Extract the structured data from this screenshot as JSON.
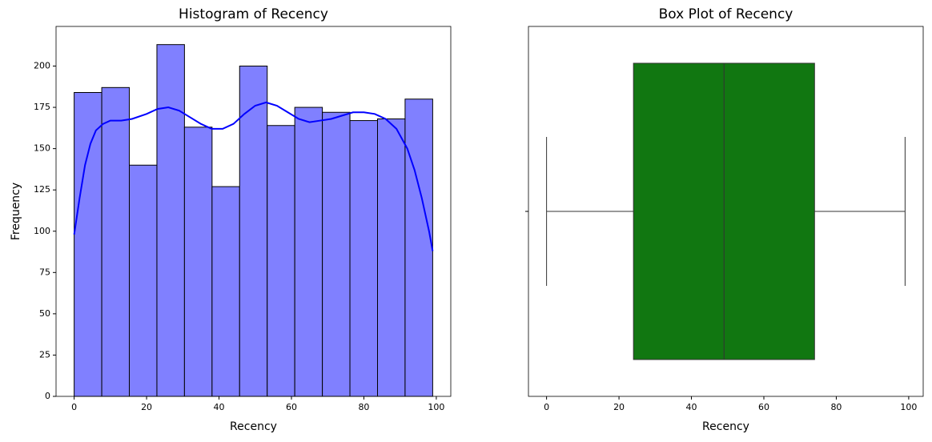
{
  "chart_data": [
    {
      "type": "histogram",
      "title": "Histogram of Recency",
      "xlabel": "Recency",
      "ylabel": "Frequency",
      "bins": [
        0,
        7.62,
        15.23,
        22.85,
        30.46,
        38.08,
        45.69,
        53.31,
        60.92,
        68.54,
        76.15,
        83.77,
        91.38,
        99
      ],
      "values": [
        184,
        187,
        140,
        213,
        163,
        127,
        200,
        164,
        175,
        172,
        167,
        168,
        180
      ],
      "color": "#8080ff",
      "edgecolor": "#000000",
      "kde": {
        "color": "#0000ff",
        "x": [
          0,
          1.5,
          3,
          4.5,
          6,
          8,
          10,
          13,
          16,
          20,
          23,
          26,
          29,
          32,
          35,
          38,
          41,
          44,
          47,
          50,
          53,
          56,
          59,
          62,
          65,
          68,
          71,
          74,
          77,
          80,
          83,
          86,
          89,
          92,
          94,
          96,
          98,
          99
        ],
        "values": [
          98,
          120,
          140,
          153,
          161,
          165,
          167,
          167,
          168,
          171,
          174,
          175,
          173,
          169,
          165,
          162,
          162,
          165,
          171,
          176,
          178,
          176,
          172,
          168,
          166,
          167,
          168,
          170,
          172,
          172,
          171,
          168,
          162,
          150,
          137,
          120,
          100,
          88
        ]
      },
      "xlim": [
        -5,
        104
      ],
      "ylim": [
        0,
        224
      ],
      "xticks": [
        0,
        20,
        40,
        60,
        80,
        100
      ],
      "yticks": [
        0,
        25,
        50,
        75,
        100,
        125,
        150,
        175,
        200
      ]
    },
    {
      "type": "box",
      "title": "Box Plot of Recency",
      "xlabel": "Recency",
      "min": 0,
      "q1": 24,
      "median": 49,
      "q3": 74,
      "max": 99,
      "color": "#117711",
      "xlim": [
        -5,
        104
      ],
      "xticks": [
        0,
        20,
        40,
        60,
        80,
        100
      ]
    }
  ]
}
